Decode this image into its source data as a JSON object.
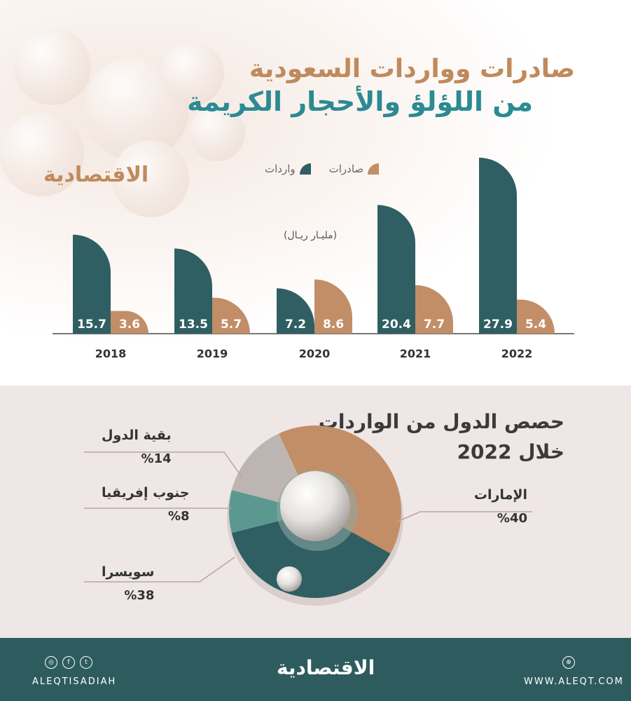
{
  "header": {
    "title_line1": "صادرات وواردات السعودية",
    "title_line2": "من اللؤلؤ والأحجار الكريمة",
    "brand": "الاقتصادية"
  },
  "legend": {
    "exports": "صادرات",
    "imports": "واردات"
  },
  "unit": "(مليـار ريـال)",
  "colors": {
    "exports": "#c28e67",
    "imports": "#2f5f62",
    "axis": "#777777"
  },
  "chart_data": [
    {
      "type": "bar",
      "categories": [
        "2018",
        "2019",
        "2020",
        "2021",
        "2022"
      ],
      "series": [
        {
          "name": "واردات",
          "values": [
            15.7,
            13.5,
            7.2,
            20.4,
            27.9
          ]
        },
        {
          "name": "صادرات",
          "values": [
            3.6,
            5.7,
            8.6,
            7.7,
            5.4
          ]
        }
      ],
      "title": "صادرات وواردات السعودية من اللؤلؤ والأحجار الكريمة",
      "ylabel": "(مليـار ريـال)",
      "ylim": [
        0,
        28
      ]
    },
    {
      "type": "pie",
      "title": "حصص الدول من الواردات خلال 2022",
      "labels": [
        "الإمارات",
        "سويسرا",
        "جنوب إفريقيا",
        "بقية الدول"
      ],
      "values": [
        40,
        38,
        8,
        14
      ],
      "colors": [
        "#c28e67",
        "#2f5f62",
        "#5b9990",
        "#bdb5b2"
      ]
    }
  ],
  "pie_section": {
    "title_line1": "حصص الدول من الواردات",
    "title_line2": "خلال 2022",
    "labels": [
      {
        "name": "الإمارات",
        "pct": "%40"
      },
      {
        "name": "سويسرا",
        "pct": "%38"
      },
      {
        "name": "جنوب إفريقيا",
        "pct": "%8"
      },
      {
        "name": "بقية الدول",
        "pct": "%14"
      }
    ]
  },
  "footer": {
    "handle": "ALEQTISADIAH",
    "website": "WWW.ALEQT.COM",
    "brand": "الاقتصادية",
    "icons": [
      "instagram-icon",
      "facebook-icon",
      "twitter-icon",
      "globe-icon"
    ]
  }
}
